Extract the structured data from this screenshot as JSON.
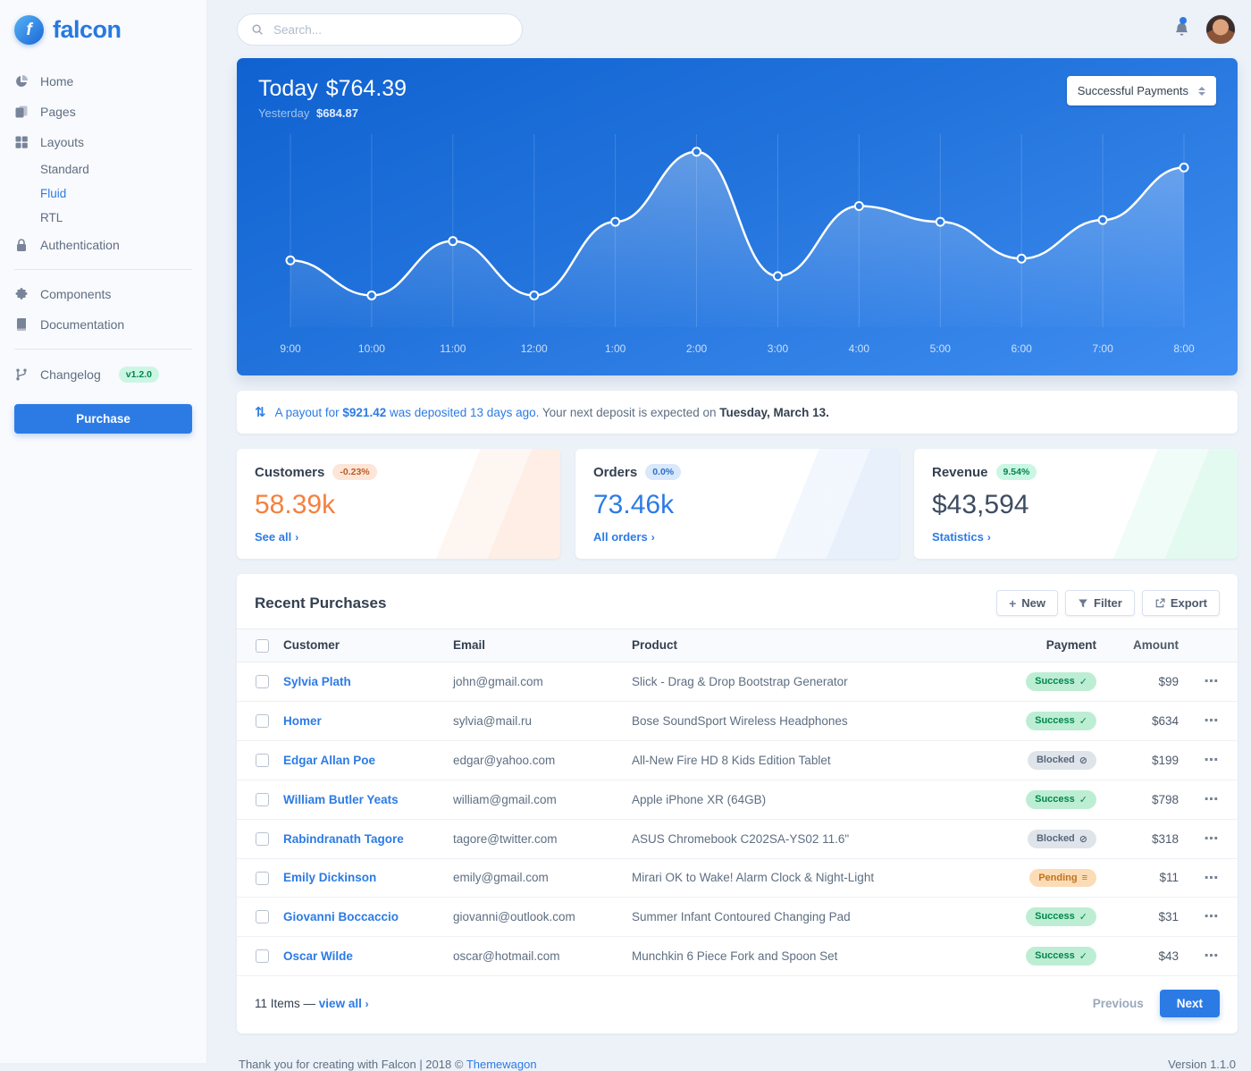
{
  "brand": {
    "name": "falcon"
  },
  "topbar": {
    "search_placeholder": "Search..."
  },
  "icons": {
    "chevron_right": "›",
    "payout_transfer": "⇅",
    "dots_horizontal": "⋯",
    "plus": "+"
  },
  "colors": {
    "primary": "#2c7be5",
    "warning_value": "#f5803e",
    "success_badge_bg": "#bdeed4",
    "success_badge_text": "#00864e",
    "page_background": "#edf2f9",
    "sidebar_background": "#f9fafd",
    "chart_gradient_top": "#0f62d0",
    "chart_gradient_bottom": "#3f8df0"
  },
  "sidebar": {
    "items": [
      {
        "label": "Home"
      },
      {
        "label": "Pages"
      },
      {
        "label": "Layouts"
      },
      {
        "label": "Authentication"
      },
      {
        "label": "Components"
      },
      {
        "label": "Documentation"
      },
      {
        "label": "Changelog",
        "badge": "v1.2.0"
      }
    ],
    "layouts_children": [
      {
        "label": "Standard"
      },
      {
        "label": "Fluid"
      },
      {
        "label": "RTL"
      }
    ],
    "active_child": "Fluid",
    "purchase_button": "Purchase"
  },
  "payments": {
    "title_label": "Today",
    "title_value": "$764.39",
    "subtitle_label": "Yesterday",
    "subtitle_value": "$684.87",
    "dropdown_value": "Successful Payments"
  },
  "chart_data": {
    "type": "line",
    "title": "Today $764.39",
    "subtitle": "Yesterday $684.87",
    "x": [
      "9:00",
      "10:00",
      "11:00",
      "12:00",
      "1:00",
      "2:00",
      "3:00",
      "4:00",
      "5:00",
      "6:00",
      "7:00",
      "8:00"
    ],
    "series": [
      {
        "name": "Successful Payments",
        "values": [
          31,
          11,
          42,
          11,
          53,
          93,
          22,
          62,
          53,
          32,
          54,
          84
        ]
      }
    ],
    "ylim": [
      0,
      100
    ],
    "grid": "vertical-only",
    "legend": "none"
  },
  "payout": {
    "link_text_before": "A payout for",
    "amount": "$921.42",
    "link_text_after": "was deposited 13 days ago.",
    "plain_text": "Your next deposit is expected on",
    "date": "Tuesday, March 13."
  },
  "stats": [
    {
      "title": "Customers",
      "badge": "-0.23%",
      "value": "58.39k",
      "link": "See all"
    },
    {
      "title": "Orders",
      "badge": "0.0%",
      "value": "73.46k",
      "link": "All orders"
    },
    {
      "title": "Revenue",
      "badge": "9.54%",
      "value": "$43,594",
      "link": "Statistics"
    }
  ],
  "purchases": {
    "title": "Recent Purchases",
    "buttons": {
      "new": "New",
      "filter": "Filter",
      "export": "Export"
    },
    "columns": [
      "Customer",
      "Email",
      "Product",
      "Payment",
      "Amount"
    ],
    "payment_icons": {
      "Success": "✓",
      "Blocked": "⊘",
      "Pending": "≡"
    },
    "rows": [
      {
        "customer": "Sylvia Plath",
        "email": "john@gmail.com",
        "product": "Slick - Drag & Drop Bootstrap Generator",
        "payment": "Success",
        "amount": "$99"
      },
      {
        "customer": "Homer",
        "email": "sylvia@mail.ru",
        "product": "Bose SoundSport Wireless Headphones",
        "payment": "Success",
        "amount": "$634"
      },
      {
        "customer": "Edgar Allan Poe",
        "email": "edgar@yahoo.com",
        "product": "All-New Fire HD 8 Kids Edition Tablet",
        "payment": "Blocked",
        "amount": "$199"
      },
      {
        "customer": "William Butler Yeats",
        "email": "william@gmail.com",
        "product": "Apple iPhone XR (64GB)",
        "payment": "Success",
        "amount": "$798"
      },
      {
        "customer": "Rabindranath Tagore",
        "email": "tagore@twitter.com",
        "product": "ASUS Chromebook C202SA-YS02 11.6\"",
        "payment": "Blocked",
        "amount": "$318"
      },
      {
        "customer": "Emily Dickinson",
        "email": "emily@gmail.com",
        "product": "Mirari OK to Wake! Alarm Clock & Night-Light",
        "payment": "Pending",
        "amount": "$11"
      },
      {
        "customer": "Giovanni Boccaccio",
        "email": "giovanni@outlook.com",
        "product": "Summer Infant Contoured Changing Pad",
        "payment": "Success",
        "amount": "$31"
      },
      {
        "customer": "Oscar Wilde",
        "email": "oscar@hotmail.com",
        "product": "Munchkin 6 Piece Fork and Spoon Set",
        "payment": "Success",
        "amount": "$43"
      }
    ],
    "footer": {
      "items_text": "11 Items —",
      "view_all": "view all",
      "previous": "Previous",
      "next": "Next"
    }
  },
  "footer": {
    "thanks": "Thank you for creating with Falcon | 2018 ©",
    "link": "Themewagon",
    "version": "Version 1.1.0"
  }
}
